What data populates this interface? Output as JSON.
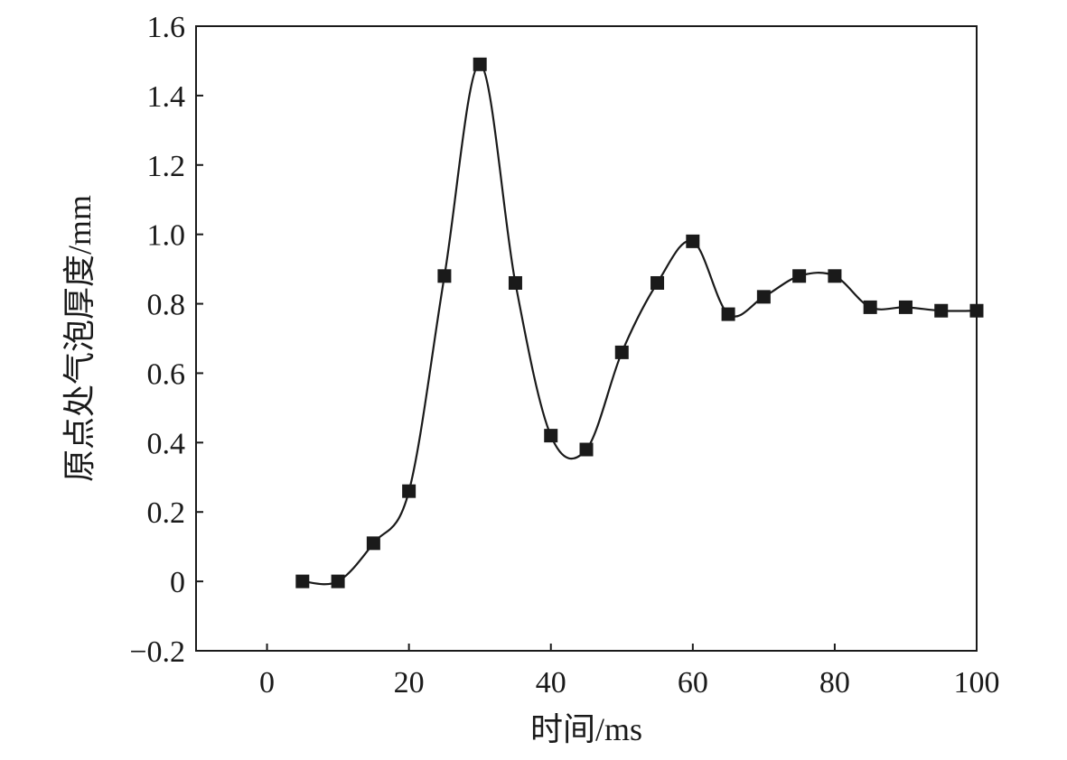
{
  "chart_data": {
    "type": "line",
    "title": "",
    "xlabel": "时间/ms",
    "ylabel": "原点处气泡厚度/mm",
    "xlim": [
      -10,
      100
    ],
    "ylim": [
      -0.2,
      1.6
    ],
    "x_ticks": [
      0,
      20,
      40,
      60,
      80,
      100
    ],
    "x_tick_labels": [
      "0",
      "20",
      "40",
      "60",
      "80",
      "100"
    ],
    "y_ticks": [
      -0.2,
      0,
      0.2,
      0.4,
      0.6,
      0.8,
      1.0,
      1.2,
      1.4,
      1.6
    ],
    "y_tick_labels": [
      "−0.2",
      "0",
      "0.2",
      "0.4",
      "0.6",
      "0.8",
      "1.0",
      "1.2",
      "1.4",
      "1.6"
    ],
    "grid": false,
    "legend": "none",
    "marker": "square",
    "colors": {
      "line": "#1a1a1a",
      "marker": "#1a1a1a",
      "axis": "#1a1a1a"
    },
    "series": [
      {
        "x": [
          5,
          10,
          15,
          20,
          25,
          30,
          35,
          40,
          45,
          50,
          55,
          60,
          65,
          70,
          75,
          80,
          85,
          90,
          95,
          100
        ],
        "y": [
          0,
          0,
          0.11,
          0.26,
          0.88,
          1.49,
          0.86,
          0.42,
          0.38,
          0.66,
          0.86,
          0.98,
          0.77,
          0.82,
          0.88,
          0.88,
          0.79,
          0.79,
          0.78,
          0.78
        ]
      }
    ]
  }
}
